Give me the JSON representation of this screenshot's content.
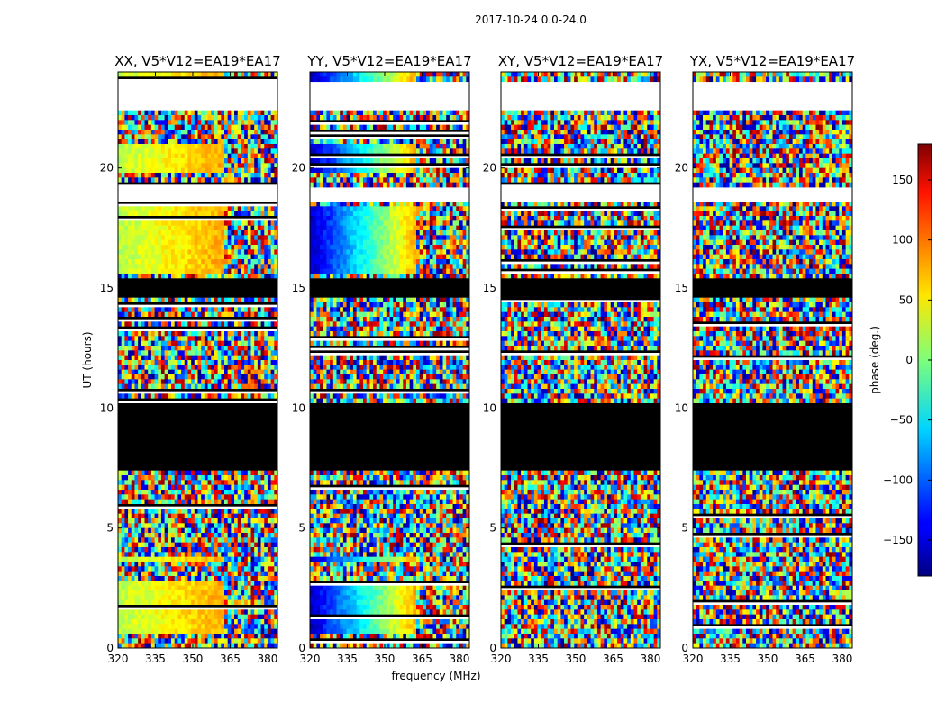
{
  "chart_data": {
    "type": "heatmap",
    "suptitle": "2017-10-24 0.0-24.0",
    "xlabel": "frequency (MHz)",
    "ylabel": "UT (hours)",
    "xlim": [
      320,
      384
    ],
    "ylim": [
      0,
      24
    ],
    "x_ticks": [
      "320",
      "335",
      "350",
      "365",
      "380"
    ],
    "y_ticks": [
      "0",
      "5",
      "10",
      "15",
      "20"
    ],
    "colorbar": {
      "label": "phase (deg.)",
      "range": [
        -180,
        180
      ],
      "ticks": [
        "150",
        "100",
        "50",
        "0",
        "−50",
        "−100",
        "−150"
      ],
      "colormap": "jet"
    },
    "panels": [
      {
        "title": "XX, V5*V12=EA19*EA17",
        "mode": "coherent",
        "phase_start": 20,
        "phase_slope": 1.3
      },
      {
        "title": "YY, V5*V12=EA19*EA17",
        "mode": "coherent",
        "phase_start": -160,
        "phase_slope": 5.5
      },
      {
        "title": "XY, V5*V12=EA19*EA17",
        "mode": "noise",
        "phase_start": 0,
        "phase_slope": 0
      },
      {
        "title": "YX, V5*V12=EA19*EA17",
        "mode": "noise",
        "phase_start": 0,
        "phase_slope": 0
      }
    ],
    "flagged_black_ut": [
      [
        7.5,
        10.3
      ],
      [
        14.7,
        15.4
      ]
    ],
    "empty_white_ut": [
      [
        22.4,
        23.6
      ],
      [
        18.6,
        19.3
      ]
    ],
    "coherent_ut": [
      [
        0.6,
        2.8
      ],
      [
        3.6,
        3.8
      ],
      [
        7.2,
        7.3
      ],
      [
        10.2,
        10.3
      ],
      [
        15.7,
        18.4
      ],
      [
        19.8,
        21.0
      ],
      [
        23.6,
        24.0
      ]
    ],
    "coherent_max_freq": 363
  }
}
